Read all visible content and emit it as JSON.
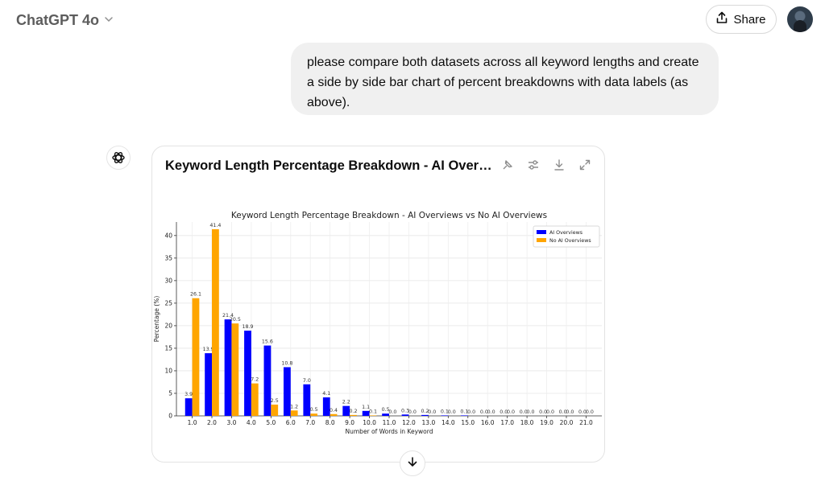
{
  "header": {
    "model_name": "ChatGPT 4o",
    "share_label": "Share"
  },
  "user_message": {
    "text": "please compare both datasets across all keyword lengths and create a side by side bar chart of percent breakdowns with data labels (as above)."
  },
  "chart_card": {
    "title": "Keyword Length Percentage Breakdown - AI Overviews..."
  },
  "icons": {
    "model_dropdown": "chevron-down-icon",
    "share": "share-upload-icon",
    "assistant": "openai-logo-icon",
    "pin": "pin-icon",
    "settings": "sliders-icon",
    "download": "download-icon",
    "expand": "expand-icon",
    "scroll_down": "arrow-down-icon"
  },
  "colors": {
    "ai_overviews": "#0000ff",
    "no_ai_overviews": "#ffa500"
  },
  "chart_data": {
    "type": "bar",
    "title": "Keyword Length Percentage Breakdown - AI Overviews vs No AI Overviews",
    "xlabel": "Number of Words in Keyword",
    "ylabel": "Percentage (%)",
    "ylim": [
      0,
      43
    ],
    "yticks": [
      0,
      5,
      10,
      15,
      20,
      25,
      30,
      35,
      40
    ],
    "grid": true,
    "legend_position": "top-right",
    "categories": [
      "1.0",
      "2.0",
      "3.0",
      "4.0",
      "5.0",
      "6.0",
      "7.0",
      "8.0",
      "9.0",
      "10.0",
      "11.0",
      "12.0",
      "13.0",
      "14.0",
      "15.0",
      "16.0",
      "17.0",
      "18.0",
      "19.0",
      "20.0",
      "21.0"
    ],
    "series": [
      {
        "name": "AI Overviews",
        "color": "#0000ff",
        "values": [
          3.9,
          13.9,
          21.4,
          18.9,
          15.6,
          10.8,
          7.0,
          4.1,
          2.2,
          1.1,
          0.5,
          0.3,
          0.2,
          0.1,
          0.1,
          0.0,
          0.0,
          0.0,
          0.0,
          0.0,
          0.0
        ]
      },
      {
        "name": "No AI Overviews",
        "color": "#ffa500",
        "values": [
          26.1,
          41.4,
          20.5,
          7.2,
          2.5,
          1.2,
          0.5,
          0.4,
          0.2,
          0.1,
          0.0,
          0.0,
          0.0,
          0.0,
          0.0,
          0.0,
          0.0,
          0.0,
          0.0,
          0.0,
          0.0
        ]
      }
    ]
  }
}
